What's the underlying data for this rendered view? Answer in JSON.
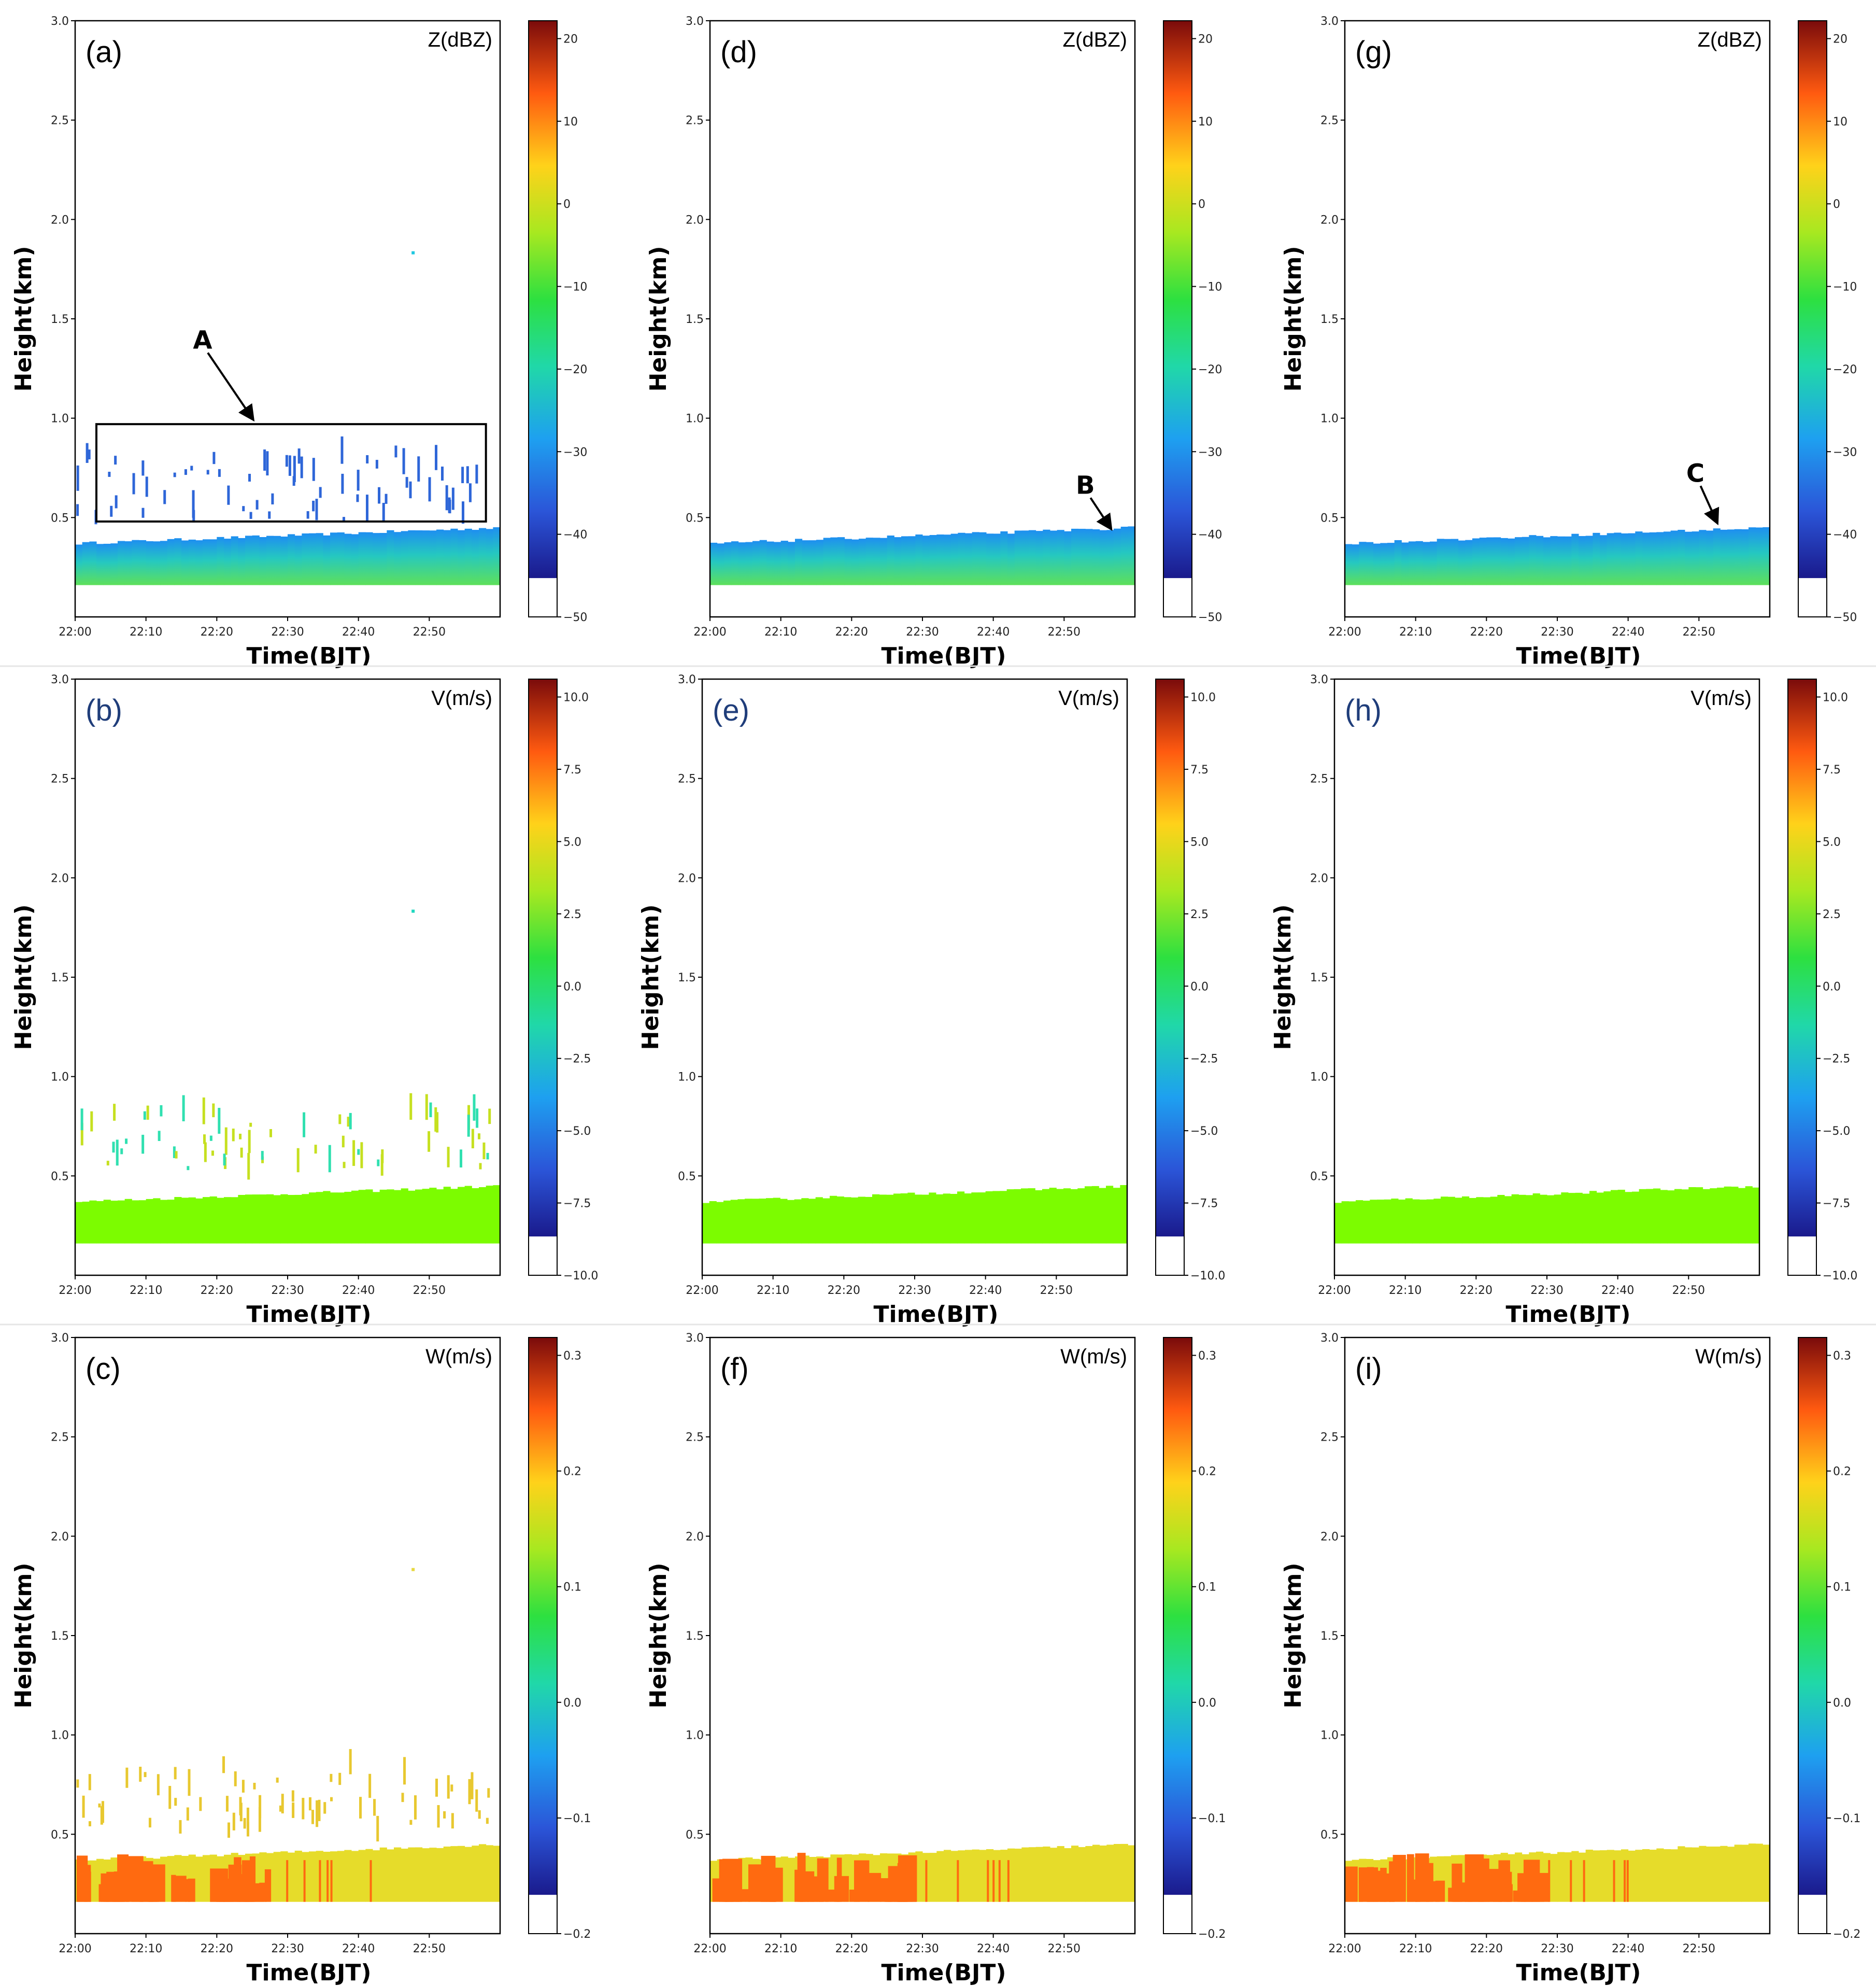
{
  "chart_data": [
    {
      "id": "a",
      "type": "heatmap",
      "panel_label": "(a)",
      "variable_label": "Z(dBZ)",
      "xlabel": "Time(BJT)",
      "ylabel": "Height(km)",
      "colorbar_ticks": [
        "20",
        "10",
        "0",
        "−10",
        "−20",
        "−30",
        "−40",
        "−50"
      ],
      "annotation": "A",
      "has_box": true,
      "noise": "echo"
    },
    {
      "id": "b",
      "type": "heatmap",
      "panel_label": "(b)",
      "variable_label": "V(m/s)",
      "xlabel": "Time(BJT)",
      "ylabel": "Height(km)",
      "colorbar_ticks": [
        "10.0",
        "7.5",
        "5.0",
        "2.5",
        "0.0",
        "−2.5",
        "−5.0",
        "−7.5",
        "−10.0"
      ],
      "annotation": "",
      "has_box": false,
      "noise": "vel"
    },
    {
      "id": "c",
      "type": "heatmap",
      "panel_label": "(c)",
      "variable_label": "W(m/s)",
      "xlabel": "Time(BJT)",
      "ylabel": "Height(km)",
      "colorbar_ticks": [
        "0.3",
        "0.2",
        "0.1",
        "0.0",
        "−0.1",
        "−0.2"
      ],
      "annotation": "",
      "has_box": false,
      "noise": "width"
    },
    {
      "id": "d",
      "type": "heatmap",
      "panel_label": "(d)",
      "variable_label": "Z(dBZ)",
      "xlabel": "Time(BJT)",
      "ylabel": "Height(km)",
      "colorbar_ticks": [
        "20",
        "10",
        "0",
        "−10",
        "−20",
        "−30",
        "−40",
        "−50"
      ],
      "annotation": "B",
      "has_box": false,
      "noise": "none"
    },
    {
      "id": "e",
      "type": "heatmap",
      "panel_label": "(e)",
      "variable_label": "V(m/s)",
      "xlabel": "Time(BJT)",
      "ylabel": "Height(km)",
      "colorbar_ticks": [
        "10.0",
        "7.5",
        "5.0",
        "2.5",
        "0.0",
        "−2.5",
        "−5.0",
        "−7.5",
        "−10.0"
      ],
      "annotation": "",
      "has_box": false,
      "noise": "none"
    },
    {
      "id": "f",
      "type": "heatmap",
      "panel_label": "(f)",
      "variable_label": "W(m/s)",
      "xlabel": "Time(BJT)",
      "ylabel": "Height(km)",
      "colorbar_ticks": [
        "0.3",
        "0.2",
        "0.1",
        "0.0",
        "−0.1",
        "−0.2"
      ],
      "annotation": "",
      "has_box": false,
      "noise": "none"
    },
    {
      "id": "g",
      "type": "heatmap",
      "panel_label": "(g)",
      "variable_label": "Z(dBZ)",
      "xlabel": "Time(BJT)",
      "ylabel": "Height(km)",
      "colorbar_ticks": [
        "20",
        "10",
        "0",
        "−10",
        "−20",
        "−30",
        "−40",
        "−50"
      ],
      "annotation": "C",
      "has_box": false,
      "noise": "none"
    },
    {
      "id": "h",
      "type": "heatmap",
      "panel_label": "(h)",
      "variable_label": "V(m/s)",
      "xlabel": "Time(BJT)",
      "ylabel": "Height(km)",
      "colorbar_ticks": [
        "10.0",
        "7.5",
        "5.0",
        "2.5",
        "0.0",
        "−2.5",
        "−5.0",
        "−7.5",
        "−10.0"
      ],
      "annotation": "",
      "has_box": false,
      "noise": "none"
    },
    {
      "id": "i",
      "type": "heatmap",
      "panel_label": "(i)",
      "variable_label": "W(m/s)",
      "xlabel": "Time(BJT)",
      "ylabel": "Height(km)",
      "colorbar_ticks": [
        "0.3",
        "0.2",
        "0.1",
        "0.0",
        "−0.1",
        "−0.2"
      ],
      "annotation": "",
      "has_box": false,
      "noise": "none"
    }
  ],
  "shared": {
    "y_ticks": [
      "3.0",
      "2.5",
      "2.0",
      "1.5",
      "1.0",
      "0.5"
    ],
    "y_tick_values": [
      3.0,
      2.5,
      2.0,
      1.5,
      1.0,
      0.5
    ],
    "y_range_km": [
      0,
      3.0
    ],
    "x_ticks": [
      "22:00",
      "22:10",
      "22:20",
      "22:30",
      "22:40",
      "22:50"
    ],
    "x_tick_minutes": [
      0,
      10,
      20,
      30,
      40,
      50
    ],
    "x_range_minutes": [
      0,
      60
    ],
    "box_a_km": [
      0.48,
      0.97
    ],
    "box_a_minutes": [
      3,
      58
    ],
    "layer_base_km": 0.16,
    "layer_top_start_km": 0.37,
    "layer_top_end_km": 0.45,
    "colors": {
      "z_top": "#1e90ff",
      "z_mid": "#33d4a0",
      "z_bottom": "#66e24a",
      "v_fill": "#7cfc00",
      "w_fill": "#e6dc2a",
      "w_hot": "#ff6a10",
      "noise_blue": "#2e66d8",
      "v_noise_yellow": "#c6e020",
      "v_noise_teal": "#30e0b0",
      "w_noise": "#e8c830",
      "panel_label_blue": "#1f3d7a"
    }
  }
}
